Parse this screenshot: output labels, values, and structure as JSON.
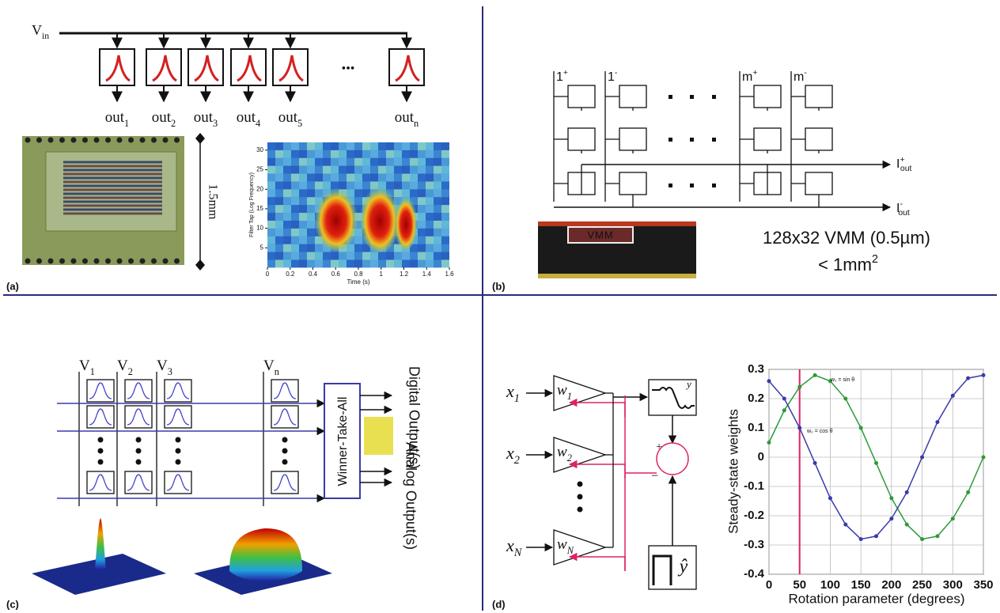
{
  "panel_a": {
    "label": "(a)",
    "input": {
      "text": "V",
      "sub": "in"
    },
    "outputs": [
      {
        "text": "out",
        "sub": "1"
      },
      {
        "text": "out",
        "sub": "2"
      },
      {
        "text": "out",
        "sub": "3"
      },
      {
        "text": "out",
        "sub": "4"
      },
      {
        "text": "out",
        "sub": "5"
      },
      {
        "text": "out",
        "sub": "n"
      }
    ],
    "ellipsis": "•••",
    "scale": "1.5mm",
    "spectrogram": {
      "ylabel": "Filter Tap (Log Frequency)",
      "xlabel": "Time (s)",
      "xlim": [
        0,
        1.6
      ],
      "xticks": [
        0,
        0.2,
        0.4,
        0.6,
        0.8,
        1,
        1.2,
        1.4,
        1.6
      ],
      "ylim": [
        0,
        32
      ],
      "yticks": [
        5,
        10,
        15,
        20,
        25,
        30
      ]
    }
  },
  "panel_b": {
    "label": "(b)",
    "columns": [
      {
        "text": "1",
        "sup": "+"
      },
      {
        "text": "1",
        "sup": "-"
      },
      {
        "text": "m",
        "sup": "+"
      },
      {
        "text": "m",
        "sup": "-"
      }
    ],
    "outputs": [
      {
        "text": "I",
        "sup": "+",
        "sub": "out"
      },
      {
        "text": "I",
        "sup": "-",
        "sub": "out"
      }
    ],
    "chip": "VMM",
    "caption": "128x32 VMM (0.5µm)",
    "area": {
      "text": "< 1mm",
      "sup": "2"
    }
  },
  "panel_c": {
    "label": "(c)",
    "inputs": [
      {
        "text": "V",
        "sub": "1"
      },
      {
        "text": "V",
        "sub": "2"
      },
      {
        "text": "V",
        "sub": "3"
      },
      {
        "text": "V",
        "sub": "n"
      }
    ],
    "wta": "Winner-Take-All",
    "digital": "Digital Output(s)",
    "analog": "Analog Output(s)"
  },
  "panel_d": {
    "label": "(d)",
    "inputs": [
      {
        "text": "x",
        "sub": "1"
      },
      {
        "text": "x",
        "sub": "2"
      },
      {
        "text": "x",
        "sub": "N"
      }
    ],
    "weights": [
      {
        "text": "w",
        "sub": "1"
      },
      {
        "text": "w",
        "sub": "2"
      },
      {
        "text": "w",
        "sub": "N"
      }
    ],
    "output": "y",
    "target": "ŷ",
    "plus": "+",
    "minus": "−",
    "chart": {
      "type": "line",
      "ylabel": "Steady-state weights",
      "xlabel": "Rotation parameter (degrees)",
      "x": [
        0,
        25,
        50,
        75,
        100,
        125,
        150,
        175,
        200,
        225,
        250,
        275,
        300,
        325,
        350
      ],
      "series": [
        {
          "name": "w₁ = sin θ",
          "color": "#2e9a3a",
          "values": [
            0.05,
            0.16,
            0.24,
            0.28,
            0.26,
            0.2,
            0.1,
            -0.02,
            -0.14,
            -0.23,
            -0.28,
            -0.27,
            -0.21,
            -0.12,
            0
          ]
        },
        {
          "name": "w₂ = cos θ",
          "color": "#3a3aa8",
          "values": [
            0.26,
            0.2,
            0.1,
            -0.02,
            -0.14,
            -0.23,
            -0.28,
            -0.27,
            -0.21,
            -0.12,
            0,
            0.12,
            0.21,
            0.27,
            0.28
          ]
        }
      ],
      "marker_x": 50,
      "marker_color": "#e0206a",
      "xlim": [
        0,
        350
      ],
      "xticks": [
        0,
        50,
        100,
        150,
        200,
        250,
        300,
        350
      ],
      "ylim": [
        -0.4,
        0.3
      ],
      "yticks": [
        -0.4,
        -0.3,
        -0.2,
        -0.1,
        0,
        0.1,
        0.2,
        0.3
      ],
      "grid": true
    }
  }
}
